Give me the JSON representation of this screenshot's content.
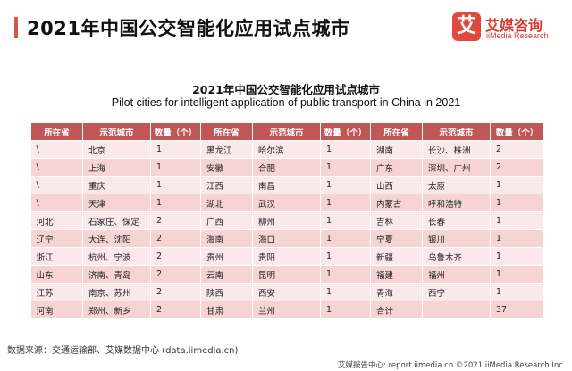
{
  "header": {
    "title": "2021年中国公交智能化应用试点城市",
    "logo": {
      "mark": "艾",
      "name_cn": "艾媒咨询",
      "name_en": "iiMedia Research"
    }
  },
  "table": {
    "title_cn": "2021年中国公交智能化应用试点城市",
    "title_en": "Pilot cities for intelligent application of public transport in China in 2021",
    "columns": [
      "所在省",
      "示范城市",
      "数量（个）",
      "所在省",
      "示范城市",
      "数量（个）",
      "所在省",
      "示范城市",
      "数量（个）"
    ],
    "rows": [
      [
        "\\",
        "北京",
        "1",
        "黑龙江",
        "哈尔滨",
        "1",
        "湖南",
        "长沙、株洲",
        "2"
      ],
      [
        "\\",
        "上海",
        "1",
        "安徽",
        "合肥",
        "1",
        "广东",
        "深圳、广州",
        "2"
      ],
      [
        "\\",
        "重庆",
        "1",
        "江西",
        "南昌",
        "1",
        "山西",
        "太原",
        "1"
      ],
      [
        "\\",
        "天津",
        "1",
        "湖北",
        "武汉",
        "1",
        "内蒙古",
        "呼和浩特",
        "1"
      ],
      [
        "河北",
        "石家庄、保定",
        "2",
        "广西",
        "柳州",
        "1",
        "吉林",
        "长春",
        "1"
      ],
      [
        "辽宁",
        "大连、沈阳",
        "2",
        "海南",
        "海口",
        "1",
        "宁夏",
        "银川",
        "1"
      ],
      [
        "浙江",
        "杭州、宁波",
        "2",
        "贵州",
        "贵阳",
        "1",
        "新疆",
        "乌鲁木齐",
        "1"
      ],
      [
        "山东",
        "济南、青岛",
        "2",
        "云南",
        "昆明",
        "1",
        "福建",
        "福州",
        "1"
      ],
      [
        "江苏",
        "南京、苏州",
        "2",
        "陕西",
        "西安",
        "1",
        "青海",
        "西宁",
        "1"
      ],
      [
        "河南",
        "郑州、新乡",
        "2",
        "甘肃",
        "兰州",
        "1",
        "合计",
        "",
        "37"
      ]
    ]
  },
  "source": "数据来源：交通运输部、艾媒数据中心 (data.iimedia.cn)",
  "footer": "艾媒报告中心: report.iimedia.cn  ©2021  iiMedia Research  Inc",
  "colors": {
    "accent": "#d9534f",
    "header_bg": "#c05656",
    "row_light": "#fbe9e9",
    "row_dark": "#f6d4d4",
    "brand": "#e1493e"
  }
}
